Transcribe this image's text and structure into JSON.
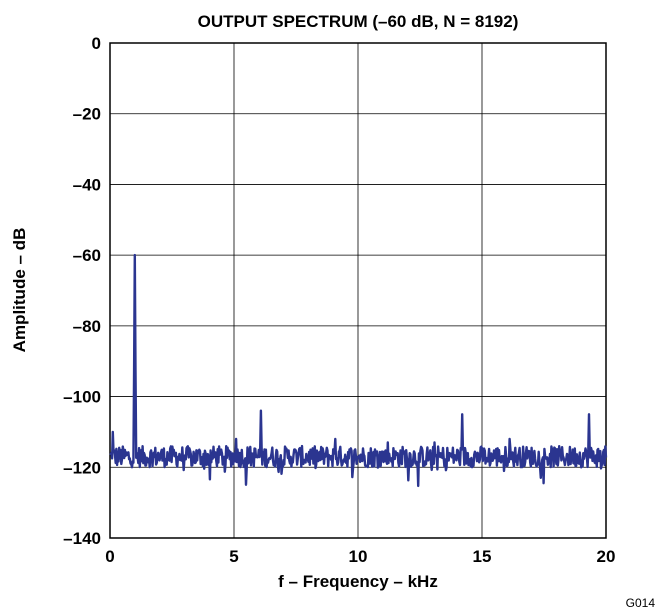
{
  "chart_data": {
    "type": "line",
    "title": "OUTPUT SPECTRUM (–60 dB, N = 8192)",
    "xlabel": "f – Frequency – kHz",
    "ylabel": "Amplitude – dB",
    "xlim": [
      0,
      20
    ],
    "ylim": [
      -140,
      0
    ],
    "xticks": [
      0,
      5,
      10,
      15,
      20
    ],
    "xtick_labels": [
      "0",
      "5",
      "10",
      "15",
      "20"
    ],
    "yticks": [
      0,
      -20,
      -40,
      -60,
      -80,
      -100,
      -120,
      -140
    ],
    "ytick_labels": [
      "0",
      "–20",
      "–40",
      "–60",
      "–80",
      "–100",
      "–120",
      "–140"
    ],
    "grid": true,
    "legend": "none",
    "series_color": "#2b3590",
    "noise_floor_db": -117,
    "peaks": [
      {
        "x": 1.0,
        "y": -60
      },
      {
        "x": 6.1,
        "y": -104
      },
      {
        "x": 14.2,
        "y": -105
      },
      {
        "x": 19.3,
        "y": -105
      },
      {
        "x": 0.1,
        "y": -110
      },
      {
        "x": 5.1,
        "y": -112
      },
      {
        "x": 9.1,
        "y": -112
      },
      {
        "x": 11.2,
        "y": -113
      },
      {
        "x": 13.1,
        "y": -113
      },
      {
        "x": 16.1,
        "y": -112
      }
    ]
  },
  "figure_code": "G014"
}
